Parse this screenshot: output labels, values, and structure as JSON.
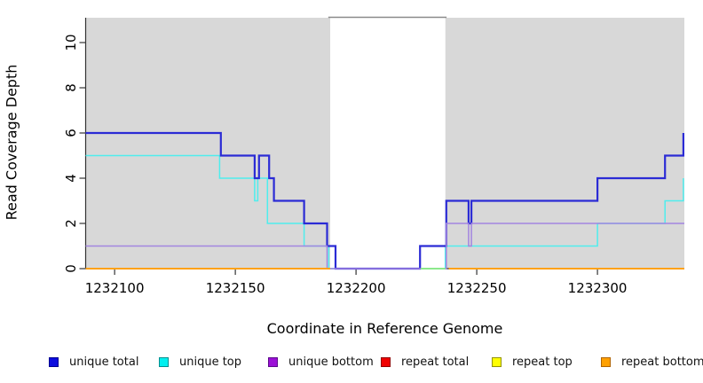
{
  "figure": {
    "x_axis_title": "Coordinate in Reference Genome",
    "y_axis_title": "Read Coverage Depth"
  },
  "chart_data": {
    "type": "line",
    "title": "",
    "xlabel": "Coordinate in Reference Genome",
    "ylabel": "Read Coverage Depth",
    "xlim": [
      1232088,
      1232336
    ],
    "ylim": [
      0,
      11.1
    ],
    "x_ticks": [
      1232100,
      1232150,
      1232200,
      1232250,
      1232300
    ],
    "y_ticks": [
      0,
      2,
      4,
      6,
      8,
      10
    ],
    "grid": false,
    "legend_position": "bottom",
    "background_color": "#ffffff",
    "shaded_regions": [
      {
        "x0": 1232088,
        "x1": 1232189.3,
        "color": "#d8d8d8"
      },
      {
        "x0": 1232237,
        "x1": 1232336,
        "color": "#d8d8d8"
      }
    ],
    "gap_top_border": {
      "x0": 1232188.5,
      "x1": 1232237.5,
      "color": "#8a8a8a"
    },
    "axis_color": "#333333",
    "series": [
      {
        "name": "repeat total",
        "color": "#e00000",
        "width": 1.6,
        "segments": [
          [
            [
              1232088,
              0
            ],
            [
              1232189.3,
              0
            ]
          ],
          [
            [
              1232238.5,
              0
            ],
            [
              1232336,
              0
            ]
          ]
        ]
      },
      {
        "name": "repeat top",
        "color": "#ffff00",
        "width": 1.6,
        "segments": [
          [
            [
              1232088,
              0
            ],
            [
              1232189.3,
              0
            ]
          ],
          [
            [
              1232238.5,
              0
            ],
            [
              1232336,
              0
            ]
          ]
        ]
      },
      {
        "name": "unique top",
        "color": "#4feded",
        "width": 1.5,
        "segments": [
          [
            [
              1232088,
              5
            ],
            [
              1232143.5,
              5
            ],
            [
              1232143.5,
              4
            ],
            [
              1232158,
              4
            ],
            [
              1232158,
              3
            ],
            [
              1232159.3,
              3
            ],
            [
              1232159.3,
              4
            ],
            [
              1232163.3,
              4
            ],
            [
              1232163.3,
              2
            ],
            [
              1232178.5,
              2
            ],
            [
              1232178.5,
              1
            ],
            [
              1232188.7,
              1
            ],
            [
              1232188.7,
              0
            ],
            [
              1232237,
              0
            ],
            [
              1232237,
              1
            ],
            [
              1232300,
              1
            ],
            [
              1232300,
              2
            ],
            [
              1232328,
              2
            ],
            [
              1232328,
              3
            ],
            [
              1232335.6,
              3
            ],
            [
              1232335.6,
              4
            ]
          ]
        ]
      },
      {
        "name": "unique total",
        "color": "#2b2bd5",
        "width": 2.2,
        "segments": [
          [
            [
              1232088,
              6
            ],
            [
              1232144,
              6
            ],
            [
              1232144,
              5
            ],
            [
              1232158,
              5
            ],
            [
              1232158,
              4
            ],
            [
              1232159.8,
              4
            ],
            [
              1232159.8,
              5
            ],
            [
              1232164,
              5
            ],
            [
              1232164,
              4
            ],
            [
              1232166,
              4
            ],
            [
              1232166,
              3
            ],
            [
              1232178.5,
              3
            ],
            [
              1232178.5,
              2
            ],
            [
              1232188,
              2
            ],
            [
              1232188,
              1
            ],
            [
              1232191.5,
              1
            ],
            [
              1232191.5,
              0
            ],
            [
              1232226.5,
              0
            ],
            [
              1232226.5,
              1
            ],
            [
              1232237.4,
              1
            ],
            [
              1232237.4,
              3
            ],
            [
              1232246.6,
              3
            ],
            [
              1232246.6,
              2
            ],
            [
              1232247.8,
              2
            ],
            [
              1232247.8,
              3
            ],
            [
              1232300,
              3
            ],
            [
              1232300,
              4
            ],
            [
              1232328,
              4
            ],
            [
              1232328,
              5
            ],
            [
              1232335.6,
              5
            ],
            [
              1232335.6,
              6
            ]
          ]
        ]
      },
      {
        "name": "unique bottom",
        "color": "#a385e0",
        "width": 1.5,
        "segments": [
          [
            [
              1232088,
              1
            ],
            [
              1232188,
              1
            ],
            [
              1232188,
              0
            ],
            [
              1232237.4,
              0
            ],
            [
              1232237.4,
              2
            ],
            [
              1232246.6,
              2
            ],
            [
              1232246.6,
              1
            ],
            [
              1232247.8,
              1
            ],
            [
              1232247.8,
              2
            ],
            [
              1232336,
              2
            ]
          ]
        ]
      },
      {
        "name": "unlabeled green segment",
        "color": "#8ce98c",
        "width": 2,
        "segments": [
          [
            [
              1232226.8,
              0
            ],
            [
              1232237,
              0
            ]
          ]
        ]
      },
      {
        "name": "repeat bottom",
        "color": "#ffa217",
        "width": 2,
        "segments": [
          [
            [
              1232088,
              0
            ],
            [
              1232189.3,
              0
            ]
          ],
          [
            [
              1232238.5,
              0
            ],
            [
              1232336,
              0
            ]
          ]
        ]
      }
    ]
  },
  "legend": {
    "items": [
      {
        "label": "unique total",
        "fill": "#0d0dde",
        "border": "#000090"
      },
      {
        "label": "unique top",
        "fill": "#00efef",
        "border": "#008f8f"
      },
      {
        "label": "unique bottom",
        "fill": "#9b10d6",
        "border": "#5c0b8b"
      },
      {
        "label": "repeat total",
        "fill": "#f00000",
        "border": "#900000"
      },
      {
        "label": "repeat top",
        "fill": "#ffff00",
        "border": "#929200"
      },
      {
        "label": "repeat bottom",
        "fill": "#ffa000",
        "border": "#b06400"
      }
    ]
  }
}
